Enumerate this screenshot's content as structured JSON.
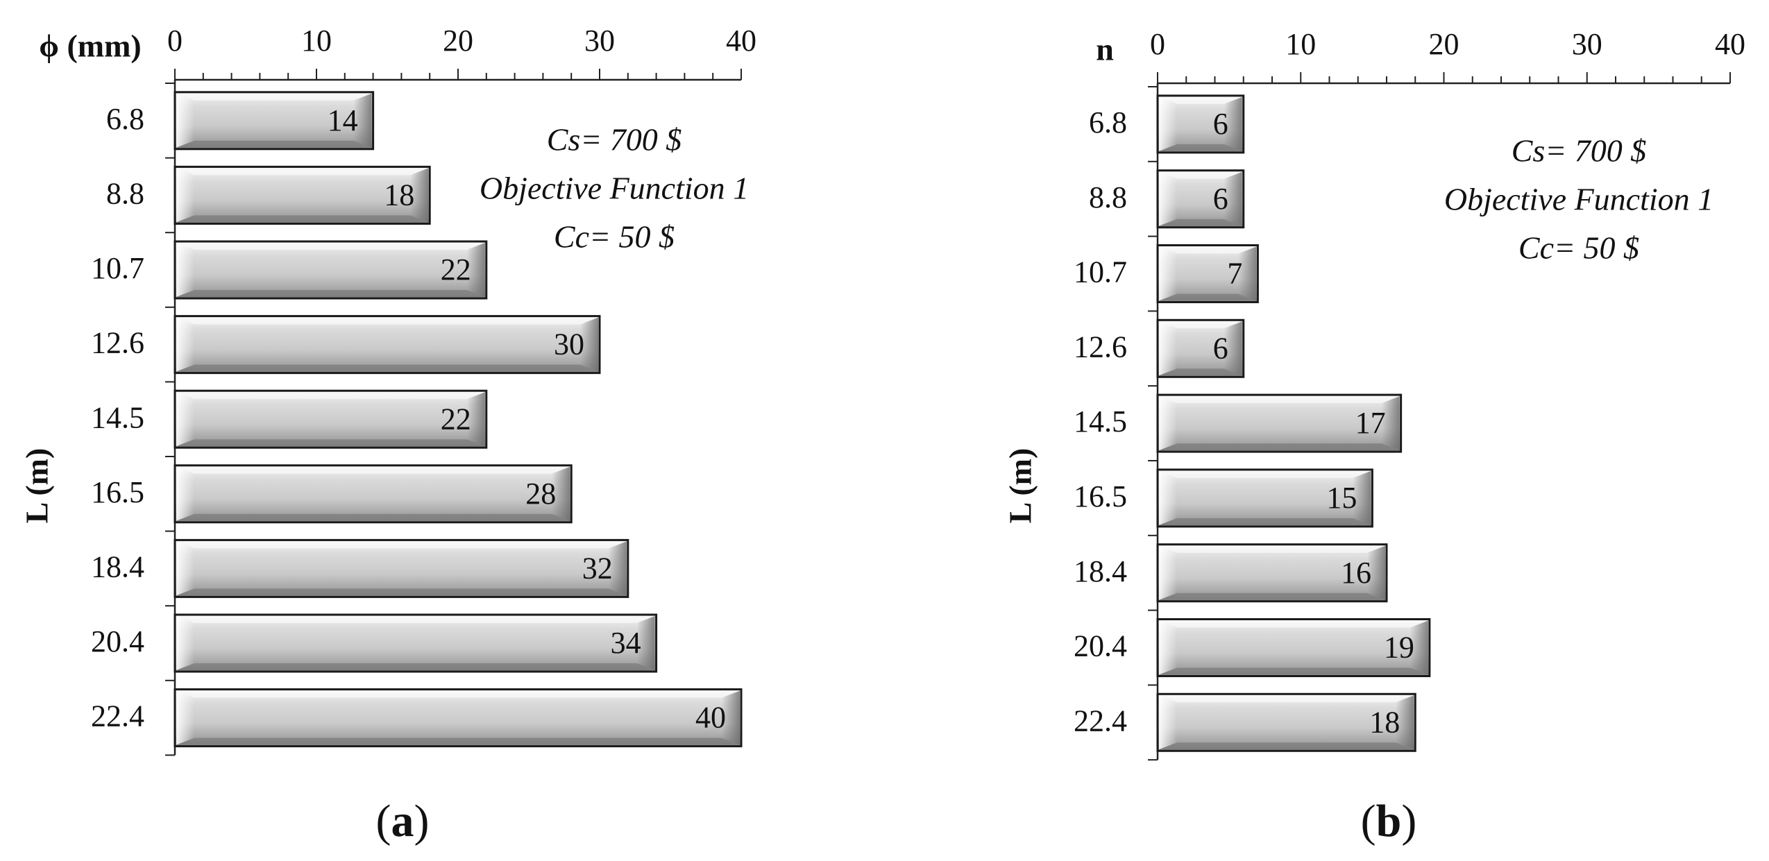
{
  "chart_data": [
    {
      "type": "bar",
      "orientation": "horizontal",
      "panel_label": "a",
      "xlabel": "ϕ (mm)",
      "ylabel": "L (m)",
      "xlim": [
        0,
        40
      ],
      "xticks": [
        "0",
        "10",
        "20",
        "30",
        "40"
      ],
      "x_axis_position": "top",
      "categories": [
        "6.8",
        "8.8",
        "10.7",
        "12.6",
        "14.5",
        "16.5",
        "18.4",
        "20.4",
        "22.4"
      ],
      "values": [
        14,
        18,
        22,
        30,
        22,
        28,
        32,
        34,
        40
      ],
      "data_labels": [
        "14",
        "18",
        "22",
        "30",
        "22",
        "28",
        "32",
        "34",
        "40"
      ],
      "annotations": [
        "Cs= 700  $",
        "Objective Function 1",
        "Cc= 50  $"
      ],
      "grid": false,
      "bar_color": "#cfcfcf"
    },
    {
      "type": "bar",
      "orientation": "horizontal",
      "panel_label": "b",
      "xlabel": "n",
      "ylabel": "L (m)",
      "xlim": [
        0,
        40
      ],
      "xticks": [
        "0",
        "10",
        "20",
        "30",
        "40"
      ],
      "x_axis_position": "top",
      "categories": [
        "6.8",
        "8.8",
        "10.7",
        "12.6",
        "14.5",
        "16.5",
        "18.4",
        "20.4",
        "22.4"
      ],
      "values": [
        6,
        6,
        7,
        6,
        17,
        15,
        16,
        19,
        18
      ],
      "data_labels": [
        "6",
        "6",
        "7",
        "6",
        "17",
        "15",
        "16",
        "19",
        "18"
      ],
      "annotations": [
        "Cs= 700  $",
        "Objective Function 1",
        "Cc= 50  $"
      ],
      "grid": false,
      "bar_color": "#cfcfcf"
    }
  ]
}
